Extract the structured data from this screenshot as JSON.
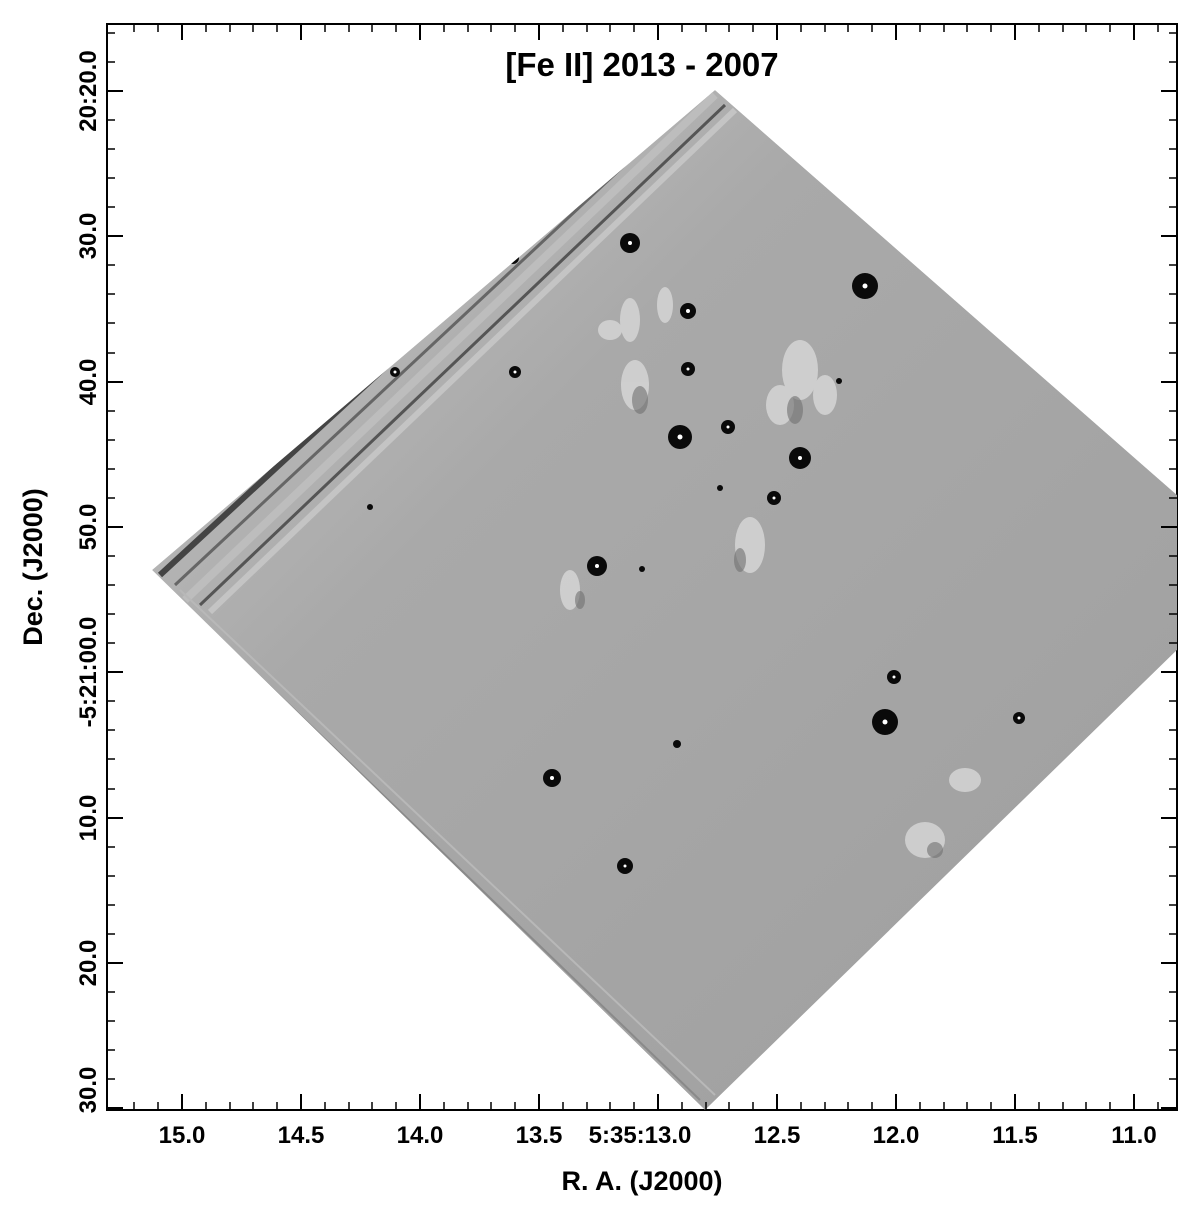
{
  "figure": {
    "title": "[Fe II]  2013 - 2007",
    "x_axis": {
      "label": "R. A.  (J2000)",
      "tick_labels": [
        "15.0",
        "14.5",
        "14.0",
        "13.5",
        "5:35:13.0",
        "12.5",
        "12.0",
        "11.5",
        "11.0"
      ]
    },
    "y_axis": {
      "label": "Dec. (J2000)",
      "tick_labels": [
        "20:20.0",
        "30.0",
        "40.0",
        "50.0",
        "-5:21:00.0",
        "10.0",
        "20.0",
        "30.0"
      ]
    },
    "image": {
      "description_kind": "difference image",
      "colors": {
        "background": "#a8a8a8",
        "frame": "#000000",
        "stars": "#0a0a0a"
      }
    }
  }
}
